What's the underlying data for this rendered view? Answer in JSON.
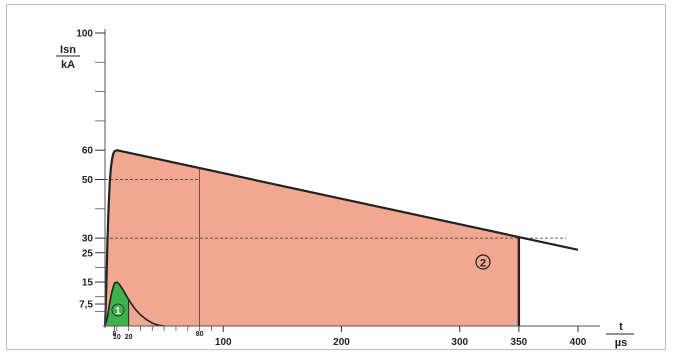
{
  "chart_data": {
    "type": "area",
    "ylabel": {
      "numerator": "Isn",
      "denominator": "kA"
    },
    "xlabel": {
      "numerator": "t",
      "denominator": "µs"
    },
    "xlim": [
      0,
      400
    ],
    "ylim": [
      0,
      100
    ],
    "y_ticks": [
      100,
      60,
      50,
      30,
      25,
      15,
      7.5
    ],
    "y_tick_labels": [
      "100",
      "60",
      "50",
      "30",
      "25",
      "15",
      "7,5"
    ],
    "y_minor_ticks": [
      90,
      80,
      70,
      40,
      20,
      10,
      5
    ],
    "x_ticks": [
      100,
      200,
      300,
      350,
      400
    ],
    "x_tick_labels": [
      "100",
      "200",
      "300",
      "350",
      "400"
    ],
    "x_small_ticks": [
      8,
      10,
      20,
      80
    ],
    "x_small_tick_labels": [
      "8",
      "10",
      "20",
      "80"
    ],
    "x_minor_ticks": [
      30,
      40,
      50,
      60,
      70,
      90
    ],
    "series": [
      {
        "marker": "1",
        "color": "#3cb24a",
        "peak": 15,
        "points": [
          [
            0,
            0
          ],
          [
            2,
            3
          ],
          [
            4,
            8
          ],
          [
            6,
            12
          ],
          [
            8,
            14.6
          ],
          [
            10,
            15
          ],
          [
            12,
            14.3
          ],
          [
            15,
            12.5
          ],
          [
            20,
            9
          ],
          [
            25,
            6
          ],
          [
            30,
            3.8
          ],
          [
            35,
            2.2
          ],
          [
            40,
            1
          ],
          [
            45,
            0.3
          ],
          [
            50,
            0
          ]
        ],
        "fill_until": 20
      },
      {
        "marker": "2",
        "color": "#f0a890",
        "peak": 60,
        "points": [
          [
            0,
            0
          ],
          [
            1,
            12
          ],
          [
            2,
            28
          ],
          [
            3,
            40
          ],
          [
            4,
            49
          ],
          [
            5,
            54
          ],
          [
            6,
            57
          ],
          [
            7,
            58.8
          ],
          [
            8,
            59.6
          ],
          [
            10,
            60
          ],
          [
            400,
            26
          ]
        ],
        "fill_until": 350
      }
    ],
    "reference_lines": {
      "horizontal": [
        {
          "y": 50,
          "x_to": 80
        },
        {
          "y": 30,
          "x_to": 390
        }
      ],
      "vertical": [
        80
      ]
    },
    "grid": false,
    "colors": {
      "line": "#222222",
      "axis": "#555555",
      "green": "#3cb24a",
      "salmon": "#f0a890"
    }
  }
}
